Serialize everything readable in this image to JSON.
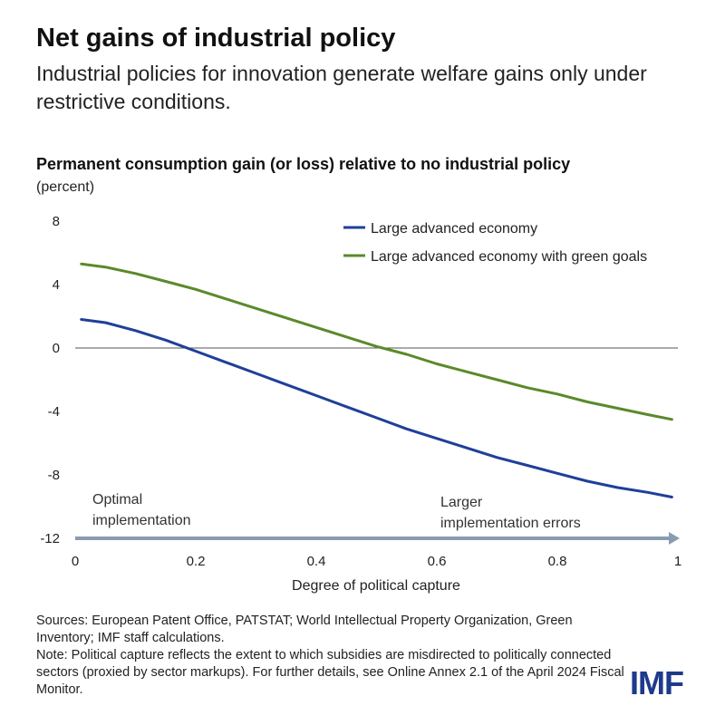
{
  "title": "Net gains of industrial policy",
  "subtitle": "Industrial policies for innovation generate welfare gains only under restrictive conditions.",
  "chart_data": {
    "type": "line",
    "title": "Permanent consumption gain (or loss) relative to no industrial policy",
    "unit": "(percent)",
    "xlabel": "Degree of political capture",
    "ylabel": "",
    "xlim": [
      0,
      1
    ],
    "ylim": [
      -12,
      8
    ],
    "x_ticks": [
      "0",
      "0.2",
      "0.4",
      "0.6",
      "0.8",
      "1"
    ],
    "y_ticks": [
      "8",
      "4",
      "0",
      "-4",
      "-8",
      "-12"
    ],
    "grid": false,
    "legend_position": "top-right",
    "x": [
      0.01,
      0.05,
      0.1,
      0.15,
      0.2,
      0.25,
      0.3,
      0.35,
      0.4,
      0.45,
      0.5,
      0.55,
      0.6,
      0.65,
      0.7,
      0.75,
      0.8,
      0.85,
      0.9,
      0.95,
      0.99
    ],
    "series": [
      {
        "name": "Large advanced economy",
        "color": "#1f3f99",
        "values": [
          1.8,
          1.6,
          1.1,
          0.5,
          -0.2,
          -0.9,
          -1.6,
          -2.3,
          -3.0,
          -3.7,
          -4.4,
          -5.1,
          -5.7,
          -6.3,
          -6.9,
          -7.4,
          -7.9,
          -8.4,
          -8.8,
          -9.1,
          -9.4
        ]
      },
      {
        "name": "Large advanced economy with green goals",
        "color": "#5a8a2a",
        "values": [
          5.3,
          5.1,
          4.7,
          4.2,
          3.7,
          3.1,
          2.5,
          1.9,
          1.3,
          0.7,
          0.1,
          -0.4,
          -1.0,
          -1.5,
          -2.0,
          -2.5,
          -2.9,
          -3.4,
          -3.8,
          -4.2,
          -4.5
        ]
      }
    ],
    "annotations": {
      "left": [
        "Optimal",
        "implementation"
      ],
      "right": [
        "Larger",
        "implementation errors"
      ]
    }
  },
  "sources": "Sources: European Patent Office, PATSTAT; World Intellectual Property Organization, Green Inventory; IMF staff calculations.",
  "note": "Note: Political capture reflects the extent to which subsidies are misdirected to politically connected sectors (proxied by sector markups). For further details, see Online Annex 2.1 of the April 2024 Fiscal Monitor.",
  "logo": "IMF",
  "colors": {
    "axis": "#555555",
    "arrow": "#8a9bb0"
  }
}
